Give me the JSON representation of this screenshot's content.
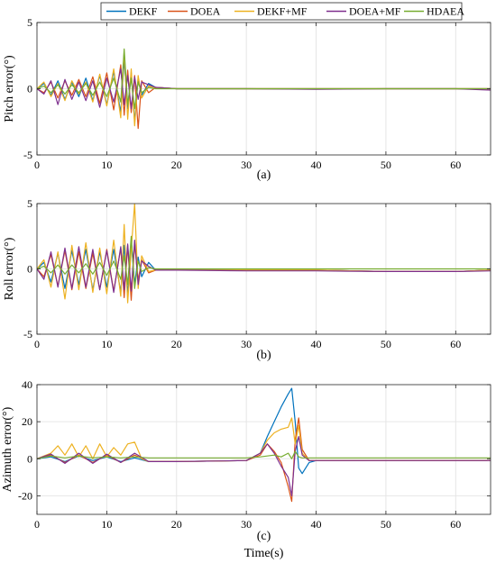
{
  "legend": {
    "entries": [
      {
        "label": "DEKF",
        "color": "#0072BD"
      },
      {
        "label": "DOEA",
        "color": "#D95319"
      },
      {
        "label": "DEKF+MF",
        "color": "#EDB120"
      },
      {
        "label": "DOEA+MF",
        "color": "#7E2F8E"
      },
      {
        "label": "HDAEA",
        "color": "#77AC30"
      }
    ],
    "placement": "top-center"
  },
  "chart_data": [
    {
      "type": "line",
      "caption": "(a)",
      "ylabel": "Pitch error(°)",
      "xlabel": "",
      "xlim": [
        0,
        65
      ],
      "ylim": [
        -5,
        5
      ],
      "xticks": [
        0,
        10,
        20,
        30,
        40,
        50,
        60
      ],
      "yticks": [
        -5,
        0,
        5
      ],
      "grid": true,
      "series": [
        {
          "name": "DEKF",
          "color": "#0072BD",
          "x": [
            0,
            1,
            2,
            3,
            4,
            5,
            6,
            7,
            8,
            9,
            10,
            11,
            12,
            12.5,
            13,
            13.5,
            14,
            14.5,
            15,
            16,
            17,
            20,
            30,
            40,
            50,
            60,
            65
          ],
          "y": [
            0,
            0.4,
            -0.5,
            0.6,
            -0.8,
            0.5,
            -0.6,
            0.8,
            -0.9,
            1.0,
            -1.2,
            1.3,
            -1.8,
            2.2,
            -1.5,
            1.2,
            -2.5,
            0.8,
            -0.5,
            0.4,
            0.1,
            0.0,
            0.0,
            0.0,
            0.0,
            0.0,
            0.0
          ]
        },
        {
          "name": "DOEA",
          "color": "#D95319",
          "x": [
            0,
            1,
            2,
            3,
            4,
            5,
            6,
            7,
            8,
            9,
            10,
            11,
            12,
            12.5,
            13,
            13.5,
            14,
            14.5,
            15,
            16,
            17,
            20,
            30,
            40,
            50,
            60,
            65
          ],
          "y": [
            0,
            -0.3,
            0.5,
            -0.7,
            0.6,
            -0.5,
            0.7,
            -0.6,
            0.9,
            -1.1,
            1.2,
            -1.6,
            1.8,
            -2.0,
            1.4,
            -1.8,
            1.0,
            -3.0,
            0.6,
            -0.3,
            0.1,
            0.0,
            0.0,
            0.0,
            0.0,
            0.0,
            0.0
          ]
        },
        {
          "name": "DEKF+MF",
          "color": "#EDB120",
          "x": [
            0,
            1,
            2,
            3,
            4,
            5,
            6,
            7,
            8,
            9,
            10,
            11,
            12,
            12.5,
            13,
            13.5,
            14,
            14.5,
            15,
            16,
            17,
            20,
            30,
            40,
            50,
            60,
            65
          ],
          "y": [
            0,
            0.5,
            -0.6,
            0.4,
            -0.9,
            0.6,
            -0.4,
            0.5,
            -1.0,
            1.1,
            -1.3,
            1.5,
            -2.2,
            2.8,
            -2.3,
            1.5,
            -2.8,
            1.0,
            -0.7,
            0.2,
            0.1,
            0.0,
            0.0,
            0.0,
            0.0,
            0.0,
            0.0
          ]
        },
        {
          "name": "DOEA+MF",
          "color": "#7E2F8E",
          "x": [
            0,
            1,
            2,
            3,
            4,
            5,
            6,
            7,
            8,
            9,
            10,
            11,
            12,
            12.5,
            13,
            13.5,
            14,
            14.5,
            15,
            16,
            17,
            20,
            30,
            40,
            50,
            60,
            65
          ],
          "y": [
            0,
            -0.4,
            0.6,
            -1.2,
            0.7,
            -0.8,
            0.5,
            -0.9,
            0.6,
            -1.4,
            0.8,
            -1.0,
            1.5,
            -1.2,
            1.0,
            -1.5,
            0.9,
            -0.8,
            0.5,
            0.3,
            0.1,
            0.0,
            0.0,
            -0.05,
            0.0,
            0.0,
            -0.1
          ]
        },
        {
          "name": "HDAEA",
          "color": "#77AC30",
          "x": [
            0,
            1,
            2,
            3,
            4,
            5,
            6,
            7,
            8,
            9,
            10,
            11,
            12,
            12.5,
            13,
            13.5,
            14,
            14.5,
            15,
            16,
            17,
            20,
            30,
            40,
            50,
            60,
            65
          ],
          "y": [
            0,
            0.2,
            -0.3,
            0.3,
            -0.4,
            0.3,
            -0.3,
            0.4,
            -0.5,
            0.5,
            -0.6,
            0.8,
            -1.0,
            3.0,
            -1.2,
            0.8,
            -1.5,
            0.5,
            -0.3,
            0.1,
            0.0,
            0.0,
            0.0,
            0.0,
            0.0,
            0.0,
            0.0
          ]
        }
      ]
    },
    {
      "type": "line",
      "caption": "(b)",
      "ylabel": "Roll error(°)",
      "xlabel": "",
      "xlim": [
        0,
        65
      ],
      "ylim": [
        -5,
        5
      ],
      "xticks": [
        0,
        10,
        20,
        30,
        40,
        50,
        60
      ],
      "yticks": [
        -5,
        0,
        5
      ],
      "grid": true,
      "series": [
        {
          "name": "DEKF",
          "color": "#0072BD",
          "x": [
            0,
            1,
            2,
            3,
            4,
            5,
            6,
            7,
            8,
            9,
            10,
            11,
            12,
            12.5,
            13,
            13.5,
            14,
            14.5,
            15,
            16,
            17,
            20,
            30,
            40,
            50,
            60,
            65
          ],
          "y": [
            0,
            0.5,
            -1.0,
            1.2,
            -1.5,
            1.4,
            -1.2,
            1.5,
            -1.6,
            1.3,
            -1.4,
            1.5,
            -1.8,
            1.8,
            -2.0,
            2.2,
            -1.2,
            0.9,
            -0.6,
            0.5,
            -0.1,
            -0.1,
            -0.1,
            -0.1,
            -0.2,
            -0.2,
            -0.1
          ]
        },
        {
          "name": "DOEA",
          "color": "#D95319",
          "x": [
            0,
            1,
            2,
            3,
            4,
            5,
            6,
            7,
            8,
            9,
            10,
            11,
            12,
            12.5,
            13,
            13.5,
            14,
            14.5,
            15,
            16,
            17,
            20,
            30,
            40,
            50,
            60,
            65
          ],
          "y": [
            0,
            -0.6,
            1.1,
            -1.3,
            1.4,
            -1.6,
            1.3,
            -1.5,
            1.2,
            -1.6,
            1.5,
            -1.7,
            1.6,
            -2.2,
            1.8,
            -2.4,
            2.0,
            -0.9,
            0.7,
            -0.3,
            -0.1,
            -0.1,
            -0.1,
            -0.1,
            -0.2,
            -0.2,
            -0.1
          ]
        },
        {
          "name": "DEKF+MF",
          "color": "#EDB120",
          "x": [
            0,
            1,
            2,
            3,
            4,
            5,
            6,
            7,
            8,
            9,
            10,
            11,
            12,
            12.5,
            13,
            13.5,
            14,
            14.5,
            15,
            16,
            17,
            20,
            30,
            40,
            50,
            60,
            65
          ],
          "y": [
            0,
            0.7,
            -1.4,
            1.3,
            -2.3,
            1.8,
            -1.6,
            2.0,
            -1.8,
            1.6,
            -1.9,
            2.2,
            -2.1,
            3.4,
            -2.6,
            1.5,
            5.0,
            -1.5,
            1.0,
            -0.2,
            -0.1,
            -0.1,
            -0.1,
            -0.1,
            -0.2,
            -0.2,
            -0.1
          ]
        },
        {
          "name": "DOEA+MF",
          "color": "#7E2F8E",
          "x": [
            0,
            1,
            2,
            3,
            4,
            5,
            6,
            7,
            8,
            9,
            10,
            11,
            12,
            12.5,
            13,
            13.5,
            14,
            14.5,
            15,
            16,
            17,
            20,
            30,
            40,
            50,
            60,
            65
          ],
          "y": [
            0,
            -0.8,
            1.3,
            -1.4,
            1.6,
            -1.5,
            1.7,
            -1.4,
            1.5,
            -1.6,
            1.4,
            -1.8,
            1.7,
            -1.6,
            1.9,
            -1.7,
            2.2,
            -1.2,
            0.6,
            0.2,
            -0.1,
            -0.1,
            -0.15,
            -0.15,
            -0.2,
            -0.2,
            -0.15
          ]
        },
        {
          "name": "HDAEA",
          "color": "#77AC30",
          "x": [
            0,
            1,
            2,
            3,
            4,
            5,
            6,
            7,
            8,
            9,
            10,
            11,
            12,
            12.5,
            13,
            13.5,
            14,
            14.5,
            15,
            16,
            17,
            20,
            30,
            40,
            50,
            60,
            65
          ],
          "y": [
            0,
            0.2,
            -0.3,
            0.3,
            -0.4,
            0.3,
            -0.3,
            0.4,
            -0.4,
            0.5,
            -0.5,
            0.6,
            -0.8,
            1.0,
            -1.2,
            2.5,
            -1.5,
            0.6,
            -0.2,
            0.1,
            0.0,
            0.0,
            0.0,
            0.0,
            0.0,
            0.0,
            0.0
          ]
        }
      ]
    },
    {
      "type": "line",
      "caption": "(c)",
      "ylabel": "Azimuth error(°)",
      "xlabel": "Time(s)",
      "xlim": [
        0,
        65
      ],
      "ylim": [
        -30,
        40
      ],
      "xticks": [
        0,
        10,
        20,
        30,
        40,
        50,
        60
      ],
      "yticks": [
        -20,
        0,
        20,
        40
      ],
      "grid": true,
      "series": [
        {
          "name": "DEKF",
          "color": "#0072BD",
          "x": [
            0,
            2,
            4,
            6,
            8,
            10,
            12,
            14,
            16,
            20,
            30,
            32,
            33,
            34,
            35,
            36,
            36.5,
            37,
            37.5,
            38,
            39,
            40,
            50,
            60,
            65
          ],
          "y": [
            0,
            1.0,
            -1.5,
            1.5,
            -1.0,
            1.0,
            -1.5,
            0.5,
            -1.5,
            -1.5,
            -1.0,
            3,
            12,
            20,
            28,
            35,
            38,
            20,
            -5,
            -8,
            -2,
            -1,
            -1,
            -1,
            -1
          ]
        },
        {
          "name": "DOEA",
          "color": "#D95319",
          "x": [
            0,
            2,
            4,
            6,
            8,
            10,
            12,
            14,
            16,
            20,
            30,
            32,
            33,
            34,
            35,
            36,
            36.5,
            37,
            37.5,
            38,
            39,
            40,
            50,
            60,
            65
          ],
          "y": [
            0,
            2,
            -2,
            2,
            -2,
            2,
            -2,
            2,
            -1.5,
            -1.5,
            -1.0,
            2,
            8,
            4,
            -2,
            -15,
            -23,
            10,
            22,
            5,
            -1,
            -1,
            -1,
            -1,
            -1
          ]
        },
        {
          "name": "DEKF+MF",
          "color": "#EDB120",
          "x": [
            0,
            2,
            3,
            4,
            5,
            6,
            7,
            8,
            9,
            10,
            11,
            12,
            13,
            14,
            15,
            16,
            20,
            30,
            32,
            33,
            34,
            35,
            36,
            36.5,
            37,
            37.5,
            38,
            39,
            40,
            50,
            60,
            65
          ],
          "y": [
            0,
            3,
            7,
            2,
            8,
            1,
            7,
            0,
            8,
            1,
            6,
            2,
            8,
            9,
            0,
            -1.5,
            -1.5,
            -1.0,
            3,
            10,
            14,
            16,
            17,
            22,
            8,
            18,
            3,
            -1,
            -1,
            -1,
            -1,
            -1
          ]
        },
        {
          "name": "DOEA+MF",
          "color": "#7E2F8E",
          "x": [
            0,
            2,
            4,
            6,
            8,
            10,
            12,
            14,
            16,
            20,
            30,
            32,
            33,
            34,
            35,
            36,
            36.5,
            37,
            37.5,
            38,
            39,
            40,
            50,
            60,
            65
          ],
          "y": [
            0,
            2.5,
            -2.5,
            3,
            -2.5,
            2.5,
            -2,
            3,
            -1.5,
            -1.5,
            -1.0,
            3,
            8,
            3,
            -4,
            -10,
            -20,
            4,
            12,
            2,
            -1,
            -1,
            -1,
            -1,
            -1
          ]
        },
        {
          "name": "HDAEA",
          "color": "#77AC30",
          "x": [
            0,
            2,
            4,
            6,
            8,
            10,
            12,
            14,
            16,
            20,
            30,
            32,
            34,
            35,
            36,
            36.5,
            37,
            37.5,
            38,
            39,
            40,
            50,
            60,
            65
          ],
          "y": [
            0,
            1.5,
            0.5,
            1.5,
            0.5,
            1.0,
            0.5,
            1.0,
            0.5,
            0.5,
            0.5,
            1,
            2,
            1,
            3,
            0,
            4,
            1,
            0.5,
            0.5,
            0.5,
            0.5,
            0.5,
            0.5
          ]
        }
      ]
    }
  ]
}
